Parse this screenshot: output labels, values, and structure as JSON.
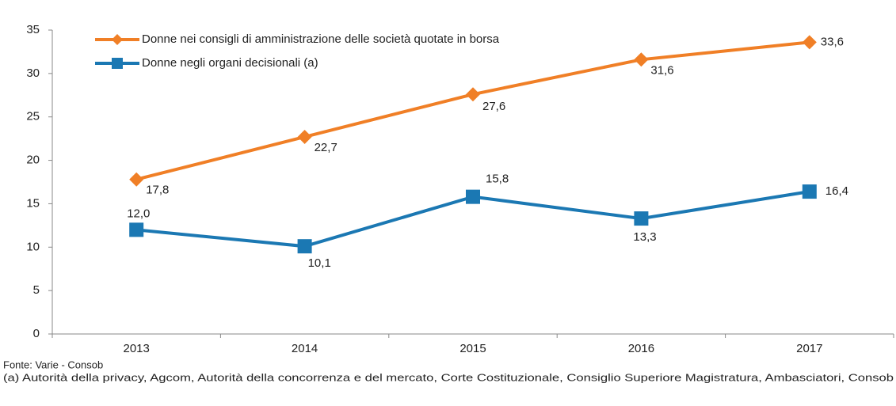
{
  "chart_data": {
    "type": "line",
    "categories": [
      "2013",
      "2014",
      "2015",
      "2016",
      "2017"
    ],
    "series": [
      {
        "name": "Donne nei consigli di amministrazione delle società quotate in borsa",
        "color": "#f07f26",
        "marker": "diamond",
        "values": [
          17.8,
          22.7,
          27.6,
          31.6,
          33.6
        ],
        "value_labels": [
          "17,8",
          "22,7",
          "27,6",
          "31,6",
          "33,6"
        ]
      },
      {
        "name": "Donne negli organi decisionali (a)",
        "color": "#1b78b3",
        "marker": "square",
        "values": [
          12.0,
          10.1,
          15.8,
          13.3,
          16.4
        ],
        "value_labels": [
          "12,0",
          "10,1",
          "15,8",
          "13,3",
          "16,4"
        ]
      }
    ],
    "ylim": [
      0,
      35
    ],
    "yticks": [
      0,
      5,
      10,
      15,
      20,
      25,
      30,
      35
    ],
    "grid": false,
    "legend": "top-left",
    "source": "Fonte: Varie - Consob",
    "note": "(a) Autorità della privacy, Agcom, Autorità della concorrenza e del mercato, Corte Costituzionale, Consiglio Superiore Magistratura, Ambasciatori, Consob"
  }
}
